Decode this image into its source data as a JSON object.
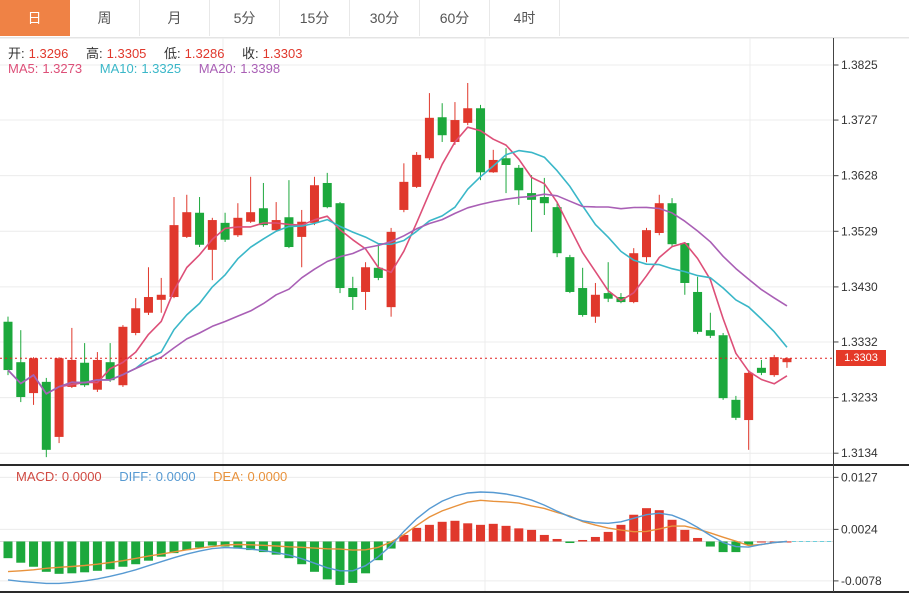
{
  "tab_bar": {
    "items": [
      {
        "name": "day",
        "label": "日",
        "active": true
      },
      {
        "name": "week",
        "label": "周",
        "active": false
      },
      {
        "name": "month",
        "label": "月",
        "active": false
      },
      {
        "name": "5min",
        "label": "5分",
        "active": false
      },
      {
        "name": "15min",
        "label": "15分",
        "active": false
      },
      {
        "name": "30min",
        "label": "30分",
        "active": false
      },
      {
        "name": "60min",
        "label": "60分",
        "active": false
      },
      {
        "name": "4hour",
        "label": "4时",
        "active": false
      }
    ]
  },
  "main_chart": {
    "ohlc": {
      "open_label": "开:",
      "open_value": "1.3296",
      "high_label": "高:",
      "high_value": "1.3305",
      "low_label": "低:",
      "low_value": "1.3286",
      "close_label": "收:",
      "close_value": "1.3303"
    },
    "ma_legend": {
      "ma5_label": "MA5:",
      "ma5_value": "1.3273",
      "ma10_label": "MA10:",
      "ma10_value": "1.3325",
      "ma20_label": "MA20:",
      "ma20_value": "1.3398"
    },
    "axis_labels": [
      "1.3825",
      "1.3727",
      "1.3628",
      "1.3529",
      "1.3430",
      "1.3332",
      "1.3233",
      "1.3134"
    ],
    "price_badge": "1.3303"
  },
  "macd_panel": {
    "legend": {
      "macd_label": "MACD:",
      "macd_value": "0.0000",
      "diff_label": "DIFF:",
      "diff_value": "0.0000",
      "dea_label": "DEA:",
      "dea_value": "0.0000"
    },
    "axis_labels": [
      "0.0127",
      "0.0024",
      "-0.0078"
    ]
  },
  "colors": {
    "accent_orange": "#ef8245",
    "up_red": "#e0382c",
    "down_green": "#1ca83c",
    "ma5": "#dd4f78",
    "ma10": "#3ab7c8",
    "ma20": "#a95fb5",
    "diff_blue": "#579ad2",
    "dea_orange": "#e8923c",
    "badge_red": "#e53928",
    "current_line_red": "#e02020",
    "zero_dash_cyan": "#6ecfdb",
    "grid": "#ececec",
    "axis_line": "#444444",
    "label_dark": "#333333"
  },
  "chart_data": {
    "type": "candlestick",
    "title": "",
    "current_price": 1.3303,
    "price_axis_range": [
      1.3134,
      1.3825
    ],
    "macd_axis_range": [
      -0.0078,
      0.0127
    ],
    "grid": true,
    "up_color": "#e0382c",
    "down_color": "#1ca83c",
    "ma_periods": [
      5,
      10,
      20
    ],
    "candles_ohlc": [
      [
        1.3368,
        1.3377,
        1.3273,
        1.3282
      ],
      [
        1.3296,
        1.3353,
        1.3225,
        1.3234
      ],
      [
        1.3241,
        1.3305,
        1.322,
        1.3303
      ],
      [
        1.3261,
        1.3268,
        1.3127,
        1.314
      ],
      [
        1.3163,
        1.3305,
        1.3152,
        1.3303
      ],
      [
        1.3252,
        1.3357,
        1.325,
        1.33
      ],
      [
        1.3295,
        1.333,
        1.3252,
        1.3255
      ],
      [
        1.3247,
        1.3314,
        1.3243,
        1.33
      ],
      [
        1.3296,
        1.333,
        1.3261,
        1.3264
      ],
      [
        1.3255,
        1.3362,
        1.3252,
        1.3359
      ],
      [
        1.3348,
        1.341,
        1.3344,
        1.3392
      ],
      [
        1.3384,
        1.3465,
        1.338,
        1.3412
      ],
      [
        1.3407,
        1.3446,
        1.3384,
        1.3416
      ],
      [
        1.3412,
        1.359,
        1.341,
        1.354
      ],
      [
        1.3519,
        1.3594,
        1.3517,
        1.3563
      ],
      [
        1.3562,
        1.359,
        1.3501,
        1.3505
      ],
      [
        1.3496,
        1.3553,
        1.3442,
        1.3549
      ],
      [
        1.3544,
        1.3562,
        1.351,
        1.3514
      ],
      [
        1.3522,
        1.3579,
        1.3519,
        1.3553
      ],
      [
        1.3546,
        1.3626,
        1.3544,
        1.3563
      ],
      [
        1.357,
        1.3615,
        1.3537,
        1.354
      ],
      [
        1.3531,
        1.3581,
        1.3528,
        1.3549
      ],
      [
        1.3554,
        1.362,
        1.3499,
        1.3501
      ],
      [
        1.3519,
        1.3567,
        1.3465,
        1.3546
      ],
      [
        1.3544,
        1.3626,
        1.354,
        1.3611
      ],
      [
        1.3615,
        1.3633,
        1.357,
        1.3572
      ],
      [
        1.3579,
        1.3581,
        1.3419,
        1.3428
      ],
      [
        1.3428,
        1.3448,
        1.3389,
        1.3412
      ],
      [
        1.3421,
        1.3474,
        1.3389,
        1.3465
      ],
      [
        1.3464,
        1.3508,
        1.3442,
        1.3446
      ],
      [
        1.3394,
        1.3535,
        1.3377,
        1.3528
      ],
      [
        1.3567,
        1.365,
        1.3563,
        1.3617
      ],
      [
        1.3608,
        1.367,
        1.3606,
        1.3665
      ],
      [
        1.3659,
        1.3775,
        1.3656,
        1.3731
      ],
      [
        1.3732,
        1.3757,
        1.3688,
        1.37
      ],
      [
        1.3688,
        1.3759,
        1.3683,
        1.3727
      ],
      [
        1.3722,
        1.3793,
        1.3718,
        1.3748
      ],
      [
        1.3748,
        1.3754,
        1.362,
        1.3634
      ],
      [
        1.3634,
        1.3674,
        1.3633,
        1.3656
      ],
      [
        1.3659,
        1.3677,
        1.3597,
        1.3647
      ],
      [
        1.3642,
        1.3647,
        1.3576,
        1.3602
      ],
      [
        1.3597,
        1.3629,
        1.3528,
        1.3585
      ],
      [
        1.359,
        1.3624,
        1.3558,
        1.3579
      ],
      [
        1.3572,
        1.3579,
        1.3483,
        1.349
      ],
      [
        1.3483,
        1.3487,
        1.3419,
        1.3421
      ],
      [
        1.3428,
        1.3464,
        1.3377,
        1.338
      ],
      [
        1.3377,
        1.3437,
        1.3366,
        1.3416
      ],
      [
        1.3419,
        1.3474,
        1.3403,
        1.3409
      ],
      [
        1.3412,
        1.3419,
        1.3401,
        1.3403
      ],
      [
        1.3403,
        1.3499,
        1.3401,
        1.349
      ],
      [
        1.3483,
        1.3535,
        1.3474,
        1.3531
      ],
      [
        1.3526,
        1.3594,
        1.3522,
        1.3579
      ],
      [
        1.3579,
        1.3588,
        1.3501,
        1.3506
      ],
      [
        1.3508,
        1.351,
        1.3416,
        1.3437
      ],
      [
        1.3421,
        1.3448,
        1.3346,
        1.335
      ],
      [
        1.3353,
        1.3384,
        1.3339,
        1.3343
      ],
      [
        1.3344,
        1.3348,
        1.3229,
        1.3232
      ],
      [
        1.3229,
        1.3236,
        1.3193,
        1.3197
      ],
      [
        1.3193,
        1.3282,
        1.314,
        1.3277
      ],
      [
        1.3286,
        1.33,
        1.3273,
        1.3277
      ],
      [
        1.3273,
        1.3309,
        1.327,
        1.3305
      ],
      [
        1.3296,
        1.3305,
        1.3286,
        1.3303
      ]
    ],
    "macd_hist": [
      -0.0033,
      -0.0042,
      -0.005,
      -0.006,
      -0.0064,
      -0.0063,
      -0.0061,
      -0.0058,
      -0.0055,
      -0.005,
      -0.0045,
      -0.0038,
      -0.003,
      -0.0023,
      -0.0017,
      -0.0012,
      -0.0008,
      -0.001,
      -0.0014,
      -0.0017,
      -0.0021,
      -0.0026,
      -0.0033,
      -0.0045,
      -0.006,
      -0.0075,
      -0.0086,
      -0.0082,
      -0.0063,
      -0.0037,
      -0.0014,
      0.0013,
      0.0027,
      0.0033,
      0.0039,
      0.0041,
      0.0036,
      0.0033,
      0.0035,
      0.0031,
      0.0026,
      0.0023,
      0.0013,
      0.0005,
      -0.0003,
      0.0003,
      0.0009,
      0.0019,
      0.0033,
      0.0053,
      0.0066,
      0.0062,
      0.0043,
      0.0023,
      0.0007,
      -0.001,
      -0.0021,
      -0.0021,
      -0.0006,
      0.0,
      0.0,
      0.0
    ],
    "macd_diff": [
      -0.0076,
      -0.0079,
      -0.0081,
      -0.0083,
      -0.0083,
      -0.0081,
      -0.0078,
      -0.0074,
      -0.0069,
      -0.0063,
      -0.0056,
      -0.0048,
      -0.004,
      -0.0032,
      -0.0025,
      -0.0019,
      -0.0014,
      -0.0012,
      -0.0013,
      -0.0015,
      -0.0018,
      -0.0022,
      -0.0027,
      -0.0034,
      -0.0043,
      -0.0052,
      -0.0058,
      -0.0058,
      -0.0048,
      -0.003,
      -0.0008,
      0.002,
      0.0045,
      0.0065,
      0.008,
      0.009,
      0.0096,
      0.0098,
      0.0097,
      0.0094,
      0.0089,
      0.0082,
      0.0072,
      0.006,
      0.0049,
      0.0041,
      0.0037,
      0.0036,
      0.0039,
      0.0046,
      0.0053,
      0.0056,
      0.0052,
      0.0042,
      0.0028,
      0.0012,
      -0.0002,
      -0.001,
      -0.0011,
      -0.0006,
      -0.0002,
      0.0
    ]
  }
}
